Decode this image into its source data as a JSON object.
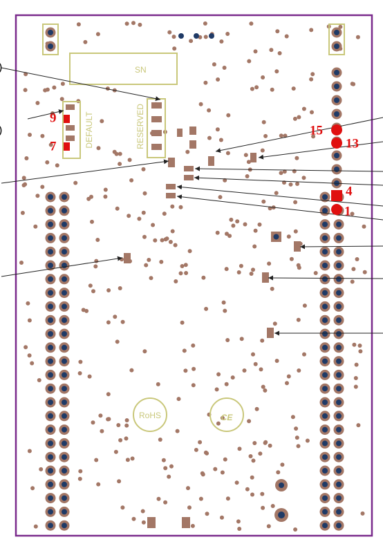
{
  "board": {
    "sn_label": "SN",
    "default_label": "DEFAULT",
    "reserved_label": "RESERVED",
    "rohs_label": "RoHS",
    "ce_label": "CE"
  },
  "pin_labels": [
    "9",
    "7",
    "15",
    "13",
    "4",
    "1"
  ],
  "edge_labels": [
    ")",
    ")"
  ]
}
